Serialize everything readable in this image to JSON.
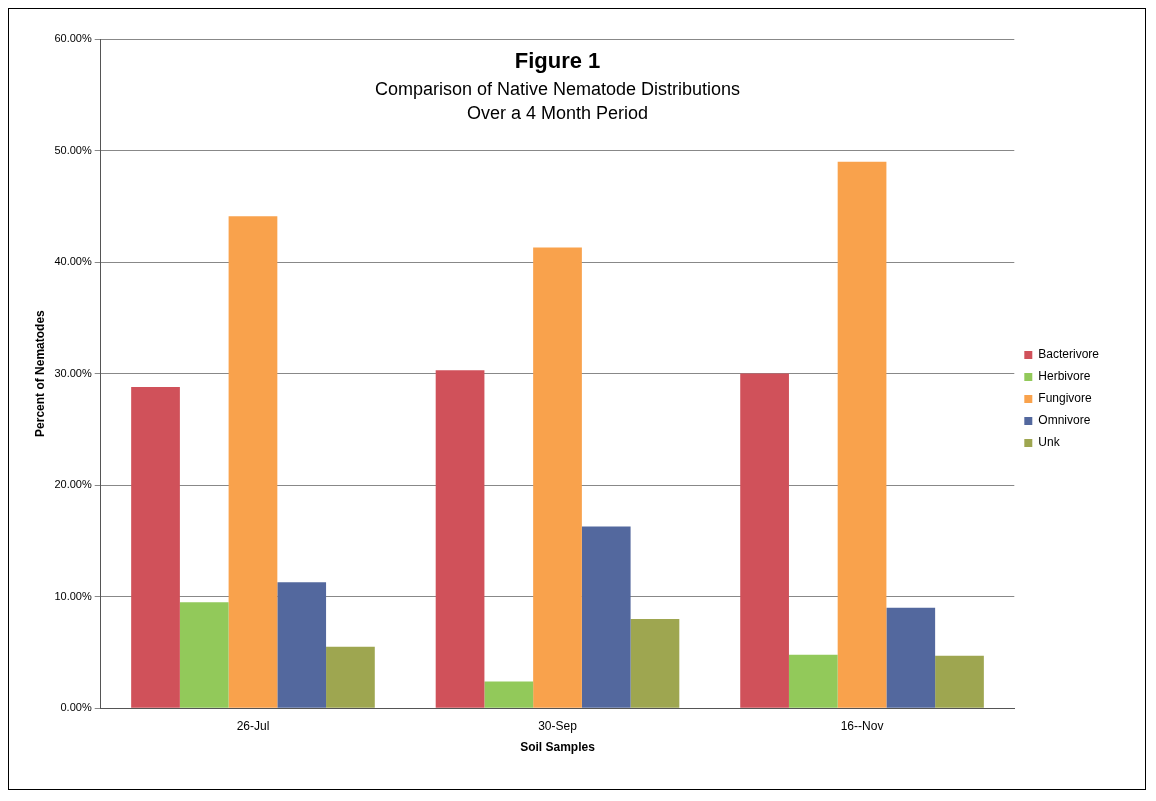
{
  "chart_data": {
    "type": "bar",
    "title": "Figure 1",
    "subtitle": "Comparison of Native Nematode Distributions\nOver a 4 Month Period",
    "xlabel": "Soil Samples",
    "ylabel": "Percent of Nematodes",
    "categories": [
      "26-Jul",
      "30-Sep",
      "16--Nov"
    ],
    "series": [
      {
        "name": "Bacterivore",
        "color": "#d0515a",
        "values": [
          28.8,
          30.3,
          30.0
        ]
      },
      {
        "name": "Herbivore",
        "color": "#92c95a",
        "values": [
          9.5,
          2.4,
          4.8
        ]
      },
      {
        "name": "Fungivore",
        "color": "#f9a24c",
        "values": [
          44.1,
          41.3,
          49.0
        ]
      },
      {
        "name": "Omnivore",
        "color": "#53689e",
        "values": [
          11.3,
          16.3,
          9.0
        ]
      },
      {
        "name": "Unk",
        "color": "#9ea650",
        "values": [
          5.5,
          8.0,
          4.7
        ]
      }
    ],
    "ylim": [
      0,
      60
    ],
    "yticks": [
      {
        "value": 0,
        "label": "0.00%"
      },
      {
        "value": 10,
        "label": "10.00%"
      },
      {
        "value": 20,
        "label": "20.00%"
      },
      {
        "value": 30,
        "label": "30.00%"
      },
      {
        "value": 40,
        "label": "40.00%"
      },
      {
        "value": 50,
        "label": "50.00%"
      },
      {
        "value": 60,
        "label": "60.00%"
      }
    ],
    "grid": "y",
    "legend": "right"
  }
}
